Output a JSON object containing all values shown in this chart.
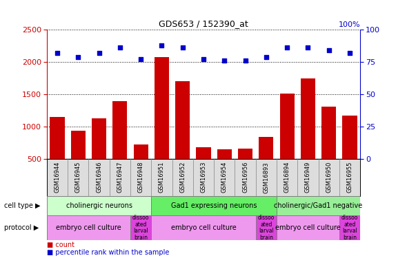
{
  "title": "GDS653 / 152390_at",
  "samples": [
    "GSM16944",
    "GSM16945",
    "GSM16946",
    "GSM16947",
    "GSM16948",
    "GSM16951",
    "GSM16952",
    "GSM16953",
    "GSM16954",
    "GSM16956",
    "GSM16893",
    "GSM16894",
    "GSM16949",
    "GSM16950",
    "GSM16955"
  ],
  "counts": [
    1150,
    930,
    1130,
    1390,
    720,
    2075,
    1700,
    680,
    645,
    655,
    840,
    1510,
    1740,
    1310,
    1170
  ],
  "percentiles": [
    82,
    79,
    82,
    86,
    77,
    88,
    86,
    77,
    76,
    76,
    79,
    86,
    86,
    84,
    82
  ],
  "bar_color": "#CC0000",
  "dot_color": "#0000CC",
  "ylim_left": [
    500,
    2500
  ],
  "ylim_right": [
    0,
    100
  ],
  "yticks_left": [
    500,
    1000,
    1500,
    2000,
    2500
  ],
  "yticks_right": [
    0,
    25,
    50,
    75,
    100
  ],
  "grid_values": [
    1000,
    1500,
    2000,
    2500
  ],
  "cell_type_groups": [
    {
      "label": "cholinergic neurons",
      "start": 0,
      "end": 5,
      "color": "#CCFFCC"
    },
    {
      "label": "Gad1 expressing neurons",
      "start": 5,
      "end": 11,
      "color": "#66EE66"
    },
    {
      "label": "cholinergic/Gad1 negative",
      "start": 11,
      "end": 15,
      "color": "#99EE99"
    }
  ],
  "protocol_groups": [
    {
      "label": "embryo cell culture",
      "start": 0,
      "end": 4,
      "color": "#EE99EE"
    },
    {
      "label": "dissoo\nated\nlarval\nbrain",
      "start": 4,
      "end": 5,
      "color": "#DD44DD"
    },
    {
      "label": "embryo cell culture",
      "start": 5,
      "end": 10,
      "color": "#EE99EE"
    },
    {
      "label": "dissoo\nated\nlarval\nbrain",
      "start": 10,
      "end": 11,
      "color": "#DD44DD"
    },
    {
      "label": "embryo cell culture",
      "start": 11,
      "end": 14,
      "color": "#EE99EE"
    },
    {
      "label": "dissoo\nated\nlarval\nbrain",
      "start": 14,
      "end": 15,
      "color": "#DD44DD"
    }
  ],
  "sample_bg_color": "#DDDDDD",
  "plot_bg_color": "#FFFFFF",
  "left_axis_color": "#CC0000",
  "right_axis_color": "#0000CC",
  "right_axis_label": "100%"
}
